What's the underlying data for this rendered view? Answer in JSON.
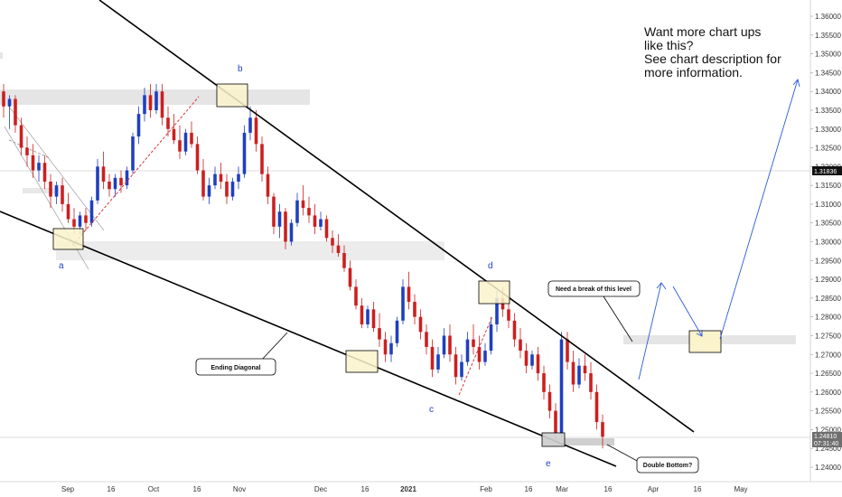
{
  "promo": {
    "line1": "Want more chart ups",
    "line2": "like this?",
    "line3": "See chart description for",
    "line4": "more information."
  },
  "annotations": {
    "ending_diagonal": "Ending Diagonal",
    "need_break": "Need a break of this level",
    "double_bottom": "Double Bottom?"
  },
  "wave_labels": [
    "a",
    "b",
    "c",
    "d",
    "e"
  ],
  "price_badges": {
    "current_price": "1.31836",
    "last_price": "1.24810",
    "countdown": "07:31:40"
  },
  "colors": {
    "bull": "#1f3fbf",
    "bear": "#cc1f1f",
    "zone": "#e5e5e5",
    "highlight": "#fbf3cc",
    "grey_box": "#cfcfcf",
    "trendline": "#000000",
    "projection": "#2b5bd7",
    "badge_dark": "#111111",
    "badge_grey": "#6f6f6f"
  },
  "chart_data": {
    "type": "candlestick",
    "title": "",
    "ylim": [
      1.2355,
      1.3635
    ],
    "yticks": [
      "1.36000",
      "1.35500",
      "1.35000",
      "1.34500",
      "1.34000",
      "1.33500",
      "1.33000",
      "1.32500",
      "1.32000",
      "1.31500",
      "1.31000",
      "1.30500",
      "1.30000",
      "1.29500",
      "1.29000",
      "1.28500",
      "1.28000",
      "1.27500",
      "1.27000",
      "1.26500",
      "1.26000",
      "1.25500",
      "1.25000",
      "1.24500",
      "1.24000"
    ],
    "xticks": [
      "Sep",
      "16",
      "Oct",
      "16",
      "Nov",
      "Dec",
      "16",
      "2021",
      "Feb",
      "16",
      "Mar",
      "16",
      "Apr",
      "16",
      "May"
    ],
    "series": [
      {
        "points": [
          [
            1.34,
            1.342,
            1.333,
            1.336
          ],
          [
            1.336,
            1.339,
            1.33,
            1.338
          ],
          [
            1.338,
            1.339,
            1.329,
            1.331
          ],
          [
            1.331,
            1.333,
            1.323,
            1.325
          ],
          [
            1.325,
            1.328,
            1.32,
            1.323
          ],
          [
            1.323,
            1.326,
            1.317,
            1.319
          ],
          [
            1.319,
            1.323,
            1.316,
            1.321
          ],
          [
            1.321,
            1.323,
            1.314,
            1.316
          ],
          [
            1.316,
            1.318,
            1.309,
            1.312
          ],
          [
            1.312,
            1.316,
            1.31,
            1.315
          ],
          [
            1.315,
            1.317,
            1.308,
            1.31
          ],
          [
            1.31,
            1.313,
            1.305,
            1.306
          ],
          [
            1.306,
            1.309,
            1.302,
            1.304
          ],
          [
            1.304,
            1.308,
            1.302,
            1.307
          ],
          [
            1.307,
            1.309,
            1.303,
            1.305
          ],
          [
            1.305,
            1.312,
            1.304,
            1.311
          ],
          [
            1.311,
            1.322,
            1.31,
            1.32
          ],
          [
            1.32,
            1.324,
            1.314,
            1.316
          ],
          [
            1.316,
            1.318,
            1.312,
            1.314
          ],
          [
            1.314,
            1.318,
            1.312,
            1.317
          ],
          [
            1.317,
            1.319,
            1.313,
            1.315
          ],
          [
            1.315,
            1.32,
            1.314,
            1.319
          ],
          [
            1.319,
            1.329,
            1.318,
            1.328
          ],
          [
            1.328,
            1.336,
            1.326,
            1.334
          ],
          [
            1.334,
            1.341,
            1.332,
            1.339
          ],
          [
            1.339,
            1.342,
            1.333,
            1.335
          ],
          [
            1.335,
            1.342,
            1.334,
            1.34
          ],
          [
            1.34,
            1.342,
            1.331,
            1.333
          ],
          [
            1.333,
            1.336,
            1.328,
            1.33
          ],
          [
            1.33,
            1.334,
            1.326,
            1.327
          ],
          [
            1.327,
            1.331,
            1.322,
            1.324
          ],
          [
            1.324,
            1.33,
            1.323,
            1.329
          ],
          [
            1.329,
            1.332,
            1.325,
            1.326
          ],
          [
            1.326,
            1.328,
            1.318,
            1.319
          ],
          [
            1.319,
            1.322,
            1.311,
            1.312
          ],
          [
            1.312,
            1.317,
            1.31,
            1.315
          ],
          [
            1.315,
            1.32,
            1.314,
            1.318
          ],
          [
            1.318,
            1.321,
            1.314,
            1.316
          ],
          [
            1.316,
            1.318,
            1.31,
            1.312
          ],
          [
            1.312,
            1.317,
            1.311,
            1.316
          ],
          [
            1.316,
            1.32,
            1.314,
            1.318
          ],
          [
            1.318,
            1.331,
            1.317,
            1.329
          ],
          [
            1.329,
            1.336,
            1.327,
            1.333
          ],
          [
            1.333,
            1.335,
            1.324,
            1.326
          ],
          [
            1.326,
            1.328,
            1.316,
            1.318
          ],
          [
            1.318,
            1.32,
            1.31,
            1.312
          ],
          [
            1.312,
            1.313,
            1.302,
            1.304
          ],
          [
            1.304,
            1.31,
            1.301,
            1.308
          ],
          [
            1.308,
            1.309,
            1.298,
            1.3
          ],
          [
            1.3,
            1.306,
            1.299,
            1.305
          ],
          [
            1.305,
            1.313,
            1.304,
            1.311
          ],
          [
            1.311,
            1.315,
            1.307,
            1.309
          ],
          [
            1.309,
            1.312,
            1.305,
            1.307
          ],
          [
            1.307,
            1.31,
            1.302,
            1.304
          ],
          [
            1.304,
            1.308,
            1.303,
            1.306
          ],
          [
            1.306,
            1.307,
            1.3,
            1.301
          ],
          [
            1.301,
            1.303,
            1.297,
            1.299
          ],
          [
            1.299,
            1.302,
            1.296,
            1.297
          ],
          [
            1.297,
            1.299,
            1.292,
            1.293
          ],
          [
            1.293,
            1.295,
            1.287,
            1.288
          ],
          [
            1.288,
            1.29,
            1.282,
            1.283
          ],
          [
            1.283,
            1.285,
            1.277,
            1.278
          ],
          [
            1.278,
            1.283,
            1.277,
            1.282
          ],
          [
            1.282,
            1.284,
            1.276,
            1.277
          ],
          [
            1.277,
            1.281,
            1.272,
            1.274
          ],
          [
            1.274,
            1.276,
            1.268,
            1.27
          ],
          [
            1.27,
            1.275,
            1.268,
            1.273
          ],
          [
            1.273,
            1.28,
            1.272,
            1.279
          ],
          [
            1.279,
            1.29,
            1.278,
            1.288
          ],
          [
            1.288,
            1.292,
            1.282,
            1.284
          ],
          [
            1.284,
            1.286,
            1.278,
            1.28
          ],
          [
            1.28,
            1.282,
            1.274,
            1.276
          ],
          [
            1.276,
            1.278,
            1.27,
            1.272
          ],
          [
            1.272,
            1.274,
            1.264,
            1.266
          ],
          [
            1.266,
            1.272,
            1.265,
            1.27
          ],
          [
            1.27,
            1.277,
            1.269,
            1.275
          ],
          [
            1.275,
            1.278,
            1.268,
            1.27
          ],
          [
            1.27,
            1.272,
            1.262,
            1.264
          ],
          [
            1.264,
            1.27,
            1.263,
            1.268
          ],
          [
            1.268,
            1.276,
            1.267,
            1.274
          ],
          [
            1.274,
            1.278,
            1.27,
            1.272
          ],
          [
            1.272,
            1.275,
            1.266,
            1.268
          ],
          [
            1.268,
            1.273,
            1.267,
            1.271
          ],
          [
            1.271,
            1.28,
            1.27,
            1.278
          ],
          [
            1.278,
            1.287,
            1.276,
            1.285
          ],
          [
            1.285,
            1.288,
            1.28,
            1.282
          ],
          [
            1.282,
            1.285,
            1.277,
            1.279
          ],
          [
            1.279,
            1.281,
            1.272,
            1.274
          ],
          [
            1.274,
            1.277,
            1.269,
            1.271
          ],
          [
            1.271,
            1.273,
            1.265,
            1.267
          ],
          [
            1.267,
            1.271,
            1.266,
            1.27
          ],
          [
            1.27,
            1.272,
            1.263,
            1.265
          ],
          [
            1.265,
            1.267,
            1.258,
            1.26
          ],
          [
            1.26,
            1.262,
            1.253,
            1.255
          ],
          [
            1.255,
            1.257,
            1.247,
            1.249
          ],
          [
            1.249,
            1.276,
            1.248,
            1.274
          ],
          [
            1.274,
            1.276,
            1.266,
            1.268
          ],
          [
            1.268,
            1.271,
            1.26,
            1.262
          ],
          [
            1.262,
            1.269,
            1.261,
            1.267
          ],
          [
            1.267,
            1.27,
            1.263,
            1.265
          ],
          [
            1.265,
            1.268,
            1.258,
            1.26
          ],
          [
            1.26,
            1.262,
            1.25,
            1.252
          ],
          [
            1.252,
            1.254,
            1.245,
            1.2481
          ]
        ]
      }
    ]
  }
}
